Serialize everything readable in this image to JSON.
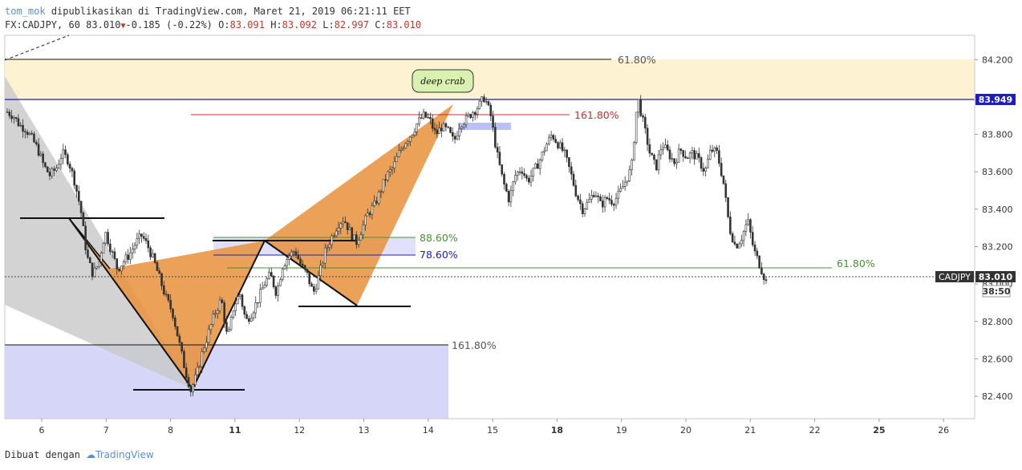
{
  "header": {
    "author": "tom_mok",
    "published": "dipublikasikan di TradingView.com, Maret 21, 2019 06:21:11 EET",
    "symbol_line": "FX:CADJPY, 60 83.010",
    "change": "-0.185 (-0.22%)",
    "o_label": "O:",
    "o": "83.091",
    "h_label": "H:",
    "h": "83.092",
    "l_label": "L:",
    "l": "82.997",
    "c_label": "C:",
    "c": "83.010"
  },
  "footer": {
    "made_with": "Dibuat dengan",
    "brand": "TradingView"
  },
  "colors": {
    "orange": "#e8903a",
    "grey": "#c8c8c8",
    "lavender": "#d6d6f8",
    "cream": "#fdf2d2",
    "blue": "#1c1cbf",
    "red": "#d42a2a",
    "green": "#4a8f3a",
    "candle": "#333333"
  },
  "price_axis": {
    "ticks": [
      "84.200",
      "84.000",
      "83.800",
      "83.600",
      "83.400",
      "83.200",
      "83.000",
      "82.800",
      "82.600",
      "82.400"
    ],
    "marker_blue": "83.949",
    "marker_symbol": "CADJPY",
    "marker_last": "83.010",
    "countdown": "38:50"
  },
  "time_axis": {
    "labels": [
      "6",
      "7",
      "8",
      "11",
      "12",
      "13",
      "14",
      "15",
      "18",
      "19",
      "20",
      "21",
      "22",
      "25",
      "26"
    ],
    "bold": [
      "11",
      "18",
      "25"
    ]
  },
  "annotations": {
    "fib_top": "61.80%",
    "fib_red": "161.80%",
    "fib_886": "88.60%",
    "fib_786": "78.60%",
    "fib_green": "61.80%",
    "fib_bottom": "161.80%",
    "pattern_name": "deep crab"
  },
  "chart_data": {
    "type": "candlestick",
    "symbol": "FX:CADJPY",
    "timeframe": "60",
    "ylim": [
      82.28,
      84.33
    ],
    "x": [
      "6",
      "7",
      "8",
      "11",
      "12",
      "13",
      "14",
      "15",
      "18",
      "19",
      "20",
      "21",
      "22",
      "25",
      "26"
    ],
    "close_path": [
      83.92,
      83.9,
      83.85,
      83.83,
      83.78,
      83.72,
      83.63,
      83.58,
      83.62,
      83.7,
      83.66,
      83.55,
      83.4,
      83.15,
      83.05,
      83.12,
      83.28,
      83.18,
      83.08,
      83.12,
      83.16,
      83.22,
      83.26,
      83.2,
      83.12,
      83.02,
      82.92,
      82.85,
      82.7,
      82.55,
      82.43,
      82.52,
      82.65,
      82.75,
      82.85,
      82.92,
      82.7,
      82.88,
      82.95,
      82.8,
      82.85,
      82.92,
      83.0,
      83.05,
      82.95,
      83.1,
      83.15,
      83.18,
      83.1,
      83.05,
      82.95,
      83.05,
      83.18,
      83.25,
      83.32,
      83.35,
      83.28,
      83.22,
      83.3,
      83.38,
      83.42,
      83.5,
      83.58,
      83.62,
      83.7,
      83.76,
      83.8,
      83.86,
      83.9,
      83.88,
      83.8,
      83.84,
      83.82,
      83.76,
      83.86,
      83.88,
      83.92,
      83.95,
      84.0,
      83.9,
      83.7,
      83.55,
      83.45,
      83.58,
      83.62,
      83.55,
      83.6,
      83.66,
      83.74,
      83.8,
      83.75,
      83.7,
      83.6,
      83.48,
      83.4,
      83.44,
      83.5,
      83.42,
      83.46,
      83.44,
      83.48,
      83.55,
      83.62,
      84.0,
      83.85,
      83.7,
      83.62,
      83.75,
      83.7,
      83.65,
      83.72,
      83.68,
      83.7,
      83.66,
      83.6,
      83.72,
      83.7,
      83.55,
      83.3,
      83.2,
      83.25,
      83.34,
      83.18,
      83.1,
      83.01
    ]
  }
}
